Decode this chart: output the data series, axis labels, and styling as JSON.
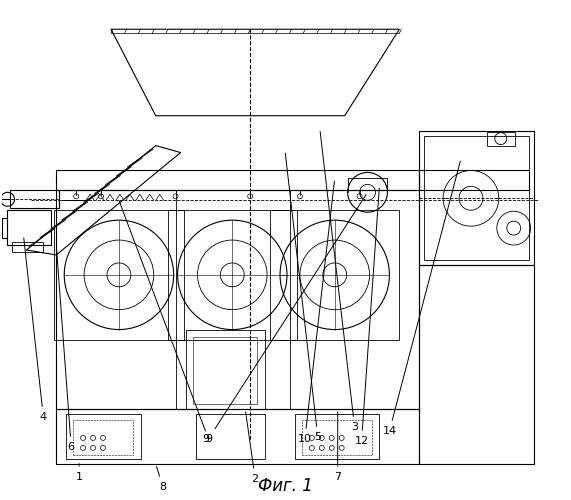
{
  "title": "Фиг. 1",
  "title_fontsize": 12,
  "background_color": "#ffffff",
  "figsize": [
    5.71,
    5.0
  ],
  "dpi": 100
}
